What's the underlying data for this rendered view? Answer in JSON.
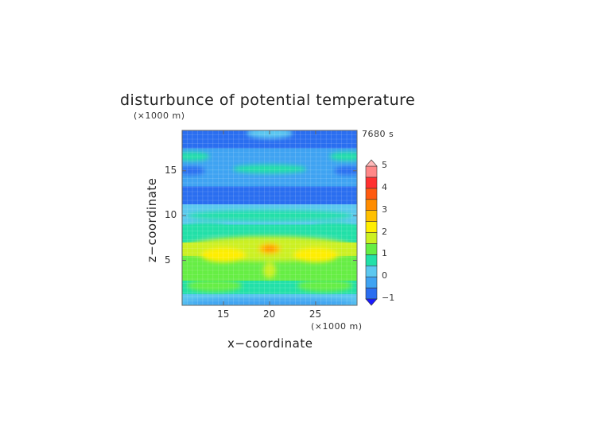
{
  "chart_data": {
    "type": "heatmap",
    "title": "disturbunce of potential temperature",
    "time_label": "7680 s",
    "xlabel": "x−coordinate",
    "ylabel": "z−coordinate",
    "x_unit": "(×1000 m)",
    "y_unit": "(×1000 m)",
    "xlim": [
      10.5,
      29.5
    ],
    "ylim": [
      0,
      19.5
    ],
    "x_ticks": [
      "15",
      "20",
      "25"
    ],
    "x_tick_values": [
      15,
      20,
      25
    ],
    "y_ticks": [
      "5",
      "10",
      "15"
    ],
    "y_tick_values": [
      5,
      10,
      15
    ],
    "colorbar": {
      "min": -1,
      "max": 5,
      "tick_labels": [
        "−1",
        "0",
        "1",
        "2",
        "3",
        "4",
        "5"
      ],
      "tick_values": [
        -1,
        0,
        1,
        2,
        3,
        4,
        5
      ],
      "levels": [
        -1,
        -0.5,
        0,
        0.5,
        1,
        1.5,
        2,
        2.5,
        3,
        3.5,
        4,
        4.5,
        5
      ],
      "colors": [
        "#1a1aff",
        "#2a6ef0",
        "#3fa3f2",
        "#5cc8f0",
        "#22e0a8",
        "#66ee44",
        "#ccf022",
        "#ffee00",
        "#ffc000",
        "#ff8c00",
        "#ff5a10",
        "#ff3030",
        "#ff8888",
        "#ffb8b8"
      ]
    },
    "grid": true,
    "approx_field_profile": [
      {
        "z": 19,
        "value": -0.9
      },
      {
        "z": 16,
        "value": -0.4
      },
      {
        "z": 14,
        "value": -0.1
      },
      {
        "z": 12.5,
        "value": -0.6
      },
      {
        "z": 10,
        "value": 0.0
      },
      {
        "z": 8,
        "value": 0.7
      },
      {
        "z": 6,
        "value": 1.6
      },
      {
        "z": 5,
        "value": 1.2
      },
      {
        "z": 3.5,
        "value": 1.0
      },
      {
        "z": 2,
        "value": 0.6
      },
      {
        "z": 0.5,
        "value": 0.2
      }
    ],
    "peak_value": 3.3,
    "peak_location": {
      "x": 20,
      "z": 6.3
    }
  }
}
